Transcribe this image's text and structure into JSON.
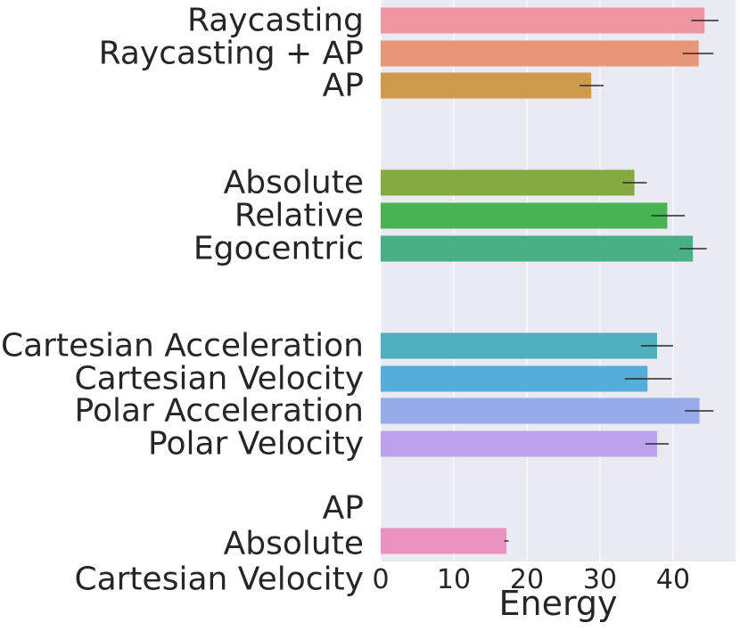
{
  "chart_data": {
    "type": "bar",
    "orientation": "horizontal",
    "xlabel": "Energy",
    "ylabel": "",
    "xlim": [
      0,
      48
    ],
    "xticks": [
      0,
      10,
      20,
      30,
      40
    ],
    "grid": true,
    "bars": [
      {
        "label": "Raycasting",
        "value": 44.3,
        "err_low": 42.5,
        "err_high": 46.2,
        "color": "#ee95a2"
      },
      {
        "label": "Raycasting + AP",
        "value": 43.5,
        "err_low": 41.3,
        "err_high": 45.5,
        "color": "#e8967a"
      },
      {
        "label": "AP",
        "value": 28.8,
        "err_low": 27.2,
        "err_high": 30.5,
        "color": "#d09a4d"
      },
      {
        "label": "Absolute",
        "value": 34.7,
        "err_low": 33.1,
        "err_high": 36.4,
        "color": "#85aa42"
      },
      {
        "label": "Relative",
        "value": 39.2,
        "err_low": 37.0,
        "err_high": 41.6,
        "color": "#47b353"
      },
      {
        "label": "Egocentric",
        "value": 42.7,
        "err_low": 40.9,
        "err_high": 44.6,
        "color": "#48b084"
      },
      {
        "label": "Cartesian Acceleration",
        "value": 37.8,
        "err_low": 35.6,
        "err_high": 40.0,
        "color": "#4fafbf"
      },
      {
        "label": "Cartesian Velocity",
        "value": 36.5,
        "err_low": 33.4,
        "err_high": 39.8,
        "color": "#55addb"
      },
      {
        "label": "Polar Acceleration",
        "value": 43.6,
        "err_low": 41.6,
        "err_high": 45.5,
        "color": "#97abe9"
      },
      {
        "label": "Polar Velocity",
        "value": 37.8,
        "err_low": 36.2,
        "err_high": 39.4,
        "color": "#bca1ec"
      },
      {
        "label": "AP\nAbsolute\nCartesian Velocity",
        "value": 17.2,
        "err_low": 16.9,
        "err_high": 17.5,
        "color": "#ea93c1"
      }
    ]
  }
}
